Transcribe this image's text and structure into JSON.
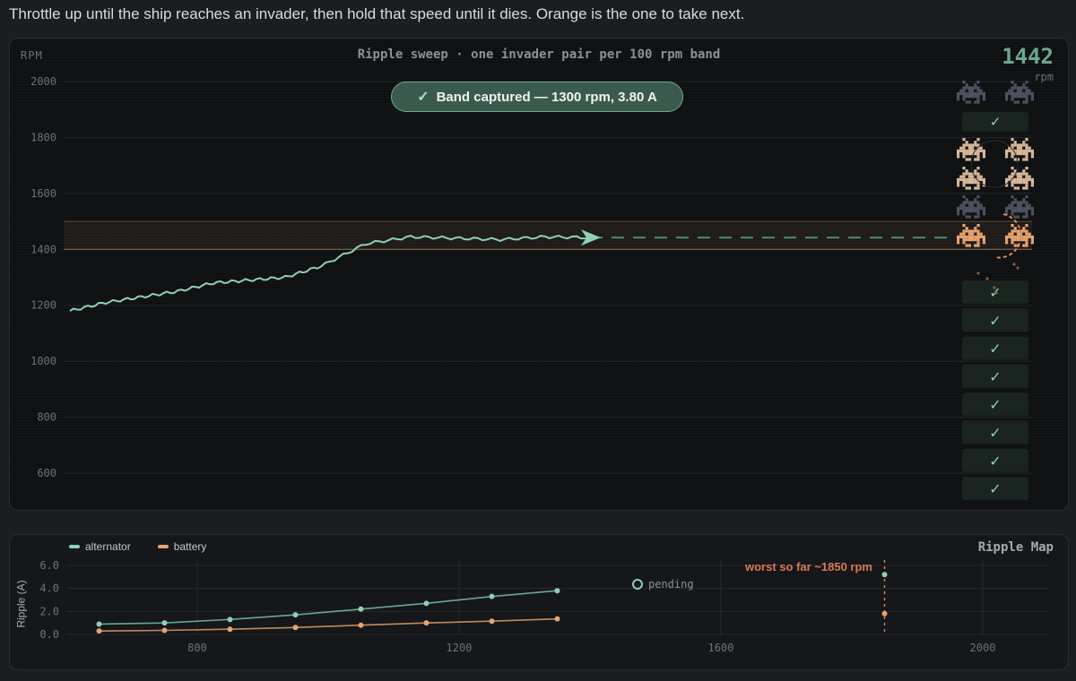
{
  "instruction": "Throttle up until the ship reaches an invader, then hold that speed until it dies. Orange is the one to take next.",
  "game": {
    "axis_title": "RPM",
    "title": "Ripple sweep · one invader pair per 100 rpm band",
    "rpm_value": "1442",
    "rpm_unit": "rpm",
    "toast_check": "✓",
    "toast": "Band captured — 1300 rpm, 3.80 A",
    "y_ticks": [
      "2000",
      "1800",
      "1600",
      "1400",
      "1200",
      "1000",
      "800",
      "600"
    ],
    "target_band": [
      1400,
      1500
    ],
    "current_rpm": 1442,
    "trace": [
      [
        0,
        1180
      ],
      [
        40,
        1210
      ],
      [
        80,
        1230
      ],
      [
        120,
        1250
      ],
      [
        160,
        1280
      ],
      [
        200,
        1290
      ],
      [
        240,
        1300
      ],
      [
        280,
        1340
      ],
      [
        330,
        1420
      ],
      [
        380,
        1445
      ],
      [
        430,
        1440
      ],
      [
        480,
        1435
      ],
      [
        530,
        1445
      ],
      [
        580,
        1442
      ]
    ],
    "invader_rows": [
      {
        "state": "captured",
        "color": "#4e5260"
      },
      {
        "state": "active",
        "color": "#d9b89a"
      },
      {
        "state": "active",
        "color": "#d9b89a"
      },
      {
        "state": "captured",
        "color": "#4e5260"
      },
      {
        "state": "next",
        "color": "#e8a36e"
      }
    ],
    "captured_checks": 8,
    "check_glyph": "✓",
    "colors": {
      "accent": "#6aa88e",
      "orange": "#e8a36e",
      "band": "#3a2a1c"
    }
  },
  "ripple_map": {
    "title": "Ripple Map",
    "y_label": "Ripple (A)",
    "legend": [
      {
        "name": "alternator",
        "color": "#8fd0b6"
      },
      {
        "name": "battery",
        "color": "#e8a36e"
      }
    ],
    "y_ticks": [
      "6.0",
      "4.0",
      "2.0",
      "0.0"
    ],
    "x_ticks": [
      "800",
      "1200",
      "1600",
      "2000"
    ],
    "pending_label": "pending",
    "worst_label": "worst so far ~1850 rpm",
    "chart_data": {
      "type": "line",
      "xlabel": "",
      "ylabel": "Ripple (A)",
      "xlim": [
        600,
        2100
      ],
      "ylim": [
        0,
        6
      ],
      "series": [
        {
          "name": "alternator",
          "x": [
            650,
            750,
            850,
            950,
            1050,
            1150,
            1250,
            1350
          ],
          "values": [
            0.9,
            1.0,
            1.3,
            1.7,
            2.2,
            2.7,
            3.3,
            3.8
          ]
        },
        {
          "name": "battery",
          "x": [
            650,
            750,
            850,
            950,
            1050,
            1150,
            1250,
            1350
          ],
          "values": [
            0.3,
            0.35,
            0.45,
            0.6,
            0.8,
            1.0,
            1.15,
            1.35
          ]
        }
      ],
      "worst": {
        "x": 1850,
        "alternator": 5.2,
        "battery": 1.8
      }
    }
  }
}
